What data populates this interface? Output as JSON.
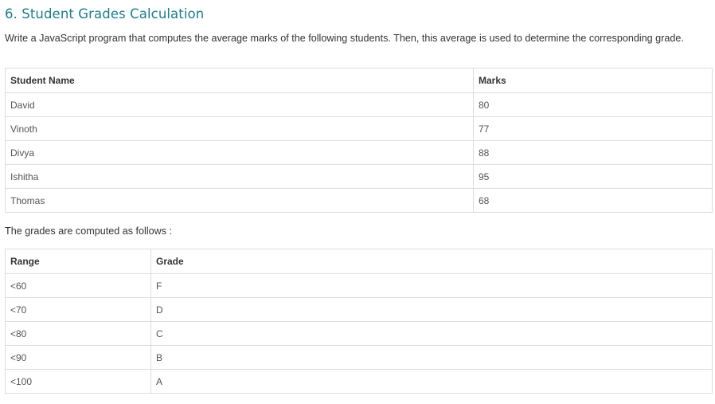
{
  "heading": "6. Student Grades Calculation",
  "intro": "Write a JavaScript program that computes the average marks of the following students. Then, this average is used to determine the corresponding grade.",
  "students_table": {
    "headers": [
      "Student Name",
      "Marks"
    ],
    "rows": [
      [
        "David",
        "80"
      ],
      [
        "Vinoth",
        "77"
      ],
      [
        "Divya",
        "88"
      ],
      [
        "Ishitha",
        "95"
      ],
      [
        "Thomas",
        "68"
      ]
    ]
  },
  "grades_note": "The grades are computed as follows :",
  "grades_table": {
    "headers": [
      "Range",
      "Grade"
    ],
    "rows": [
      [
        "<60",
        "F"
      ],
      [
        "<70",
        "D"
      ],
      [
        "<80",
        "C"
      ],
      [
        "<90",
        "B"
      ],
      [
        "<100",
        "A"
      ]
    ]
  },
  "colors": {
    "heading": "#1c7d8c",
    "border": "#dddddd"
  }
}
